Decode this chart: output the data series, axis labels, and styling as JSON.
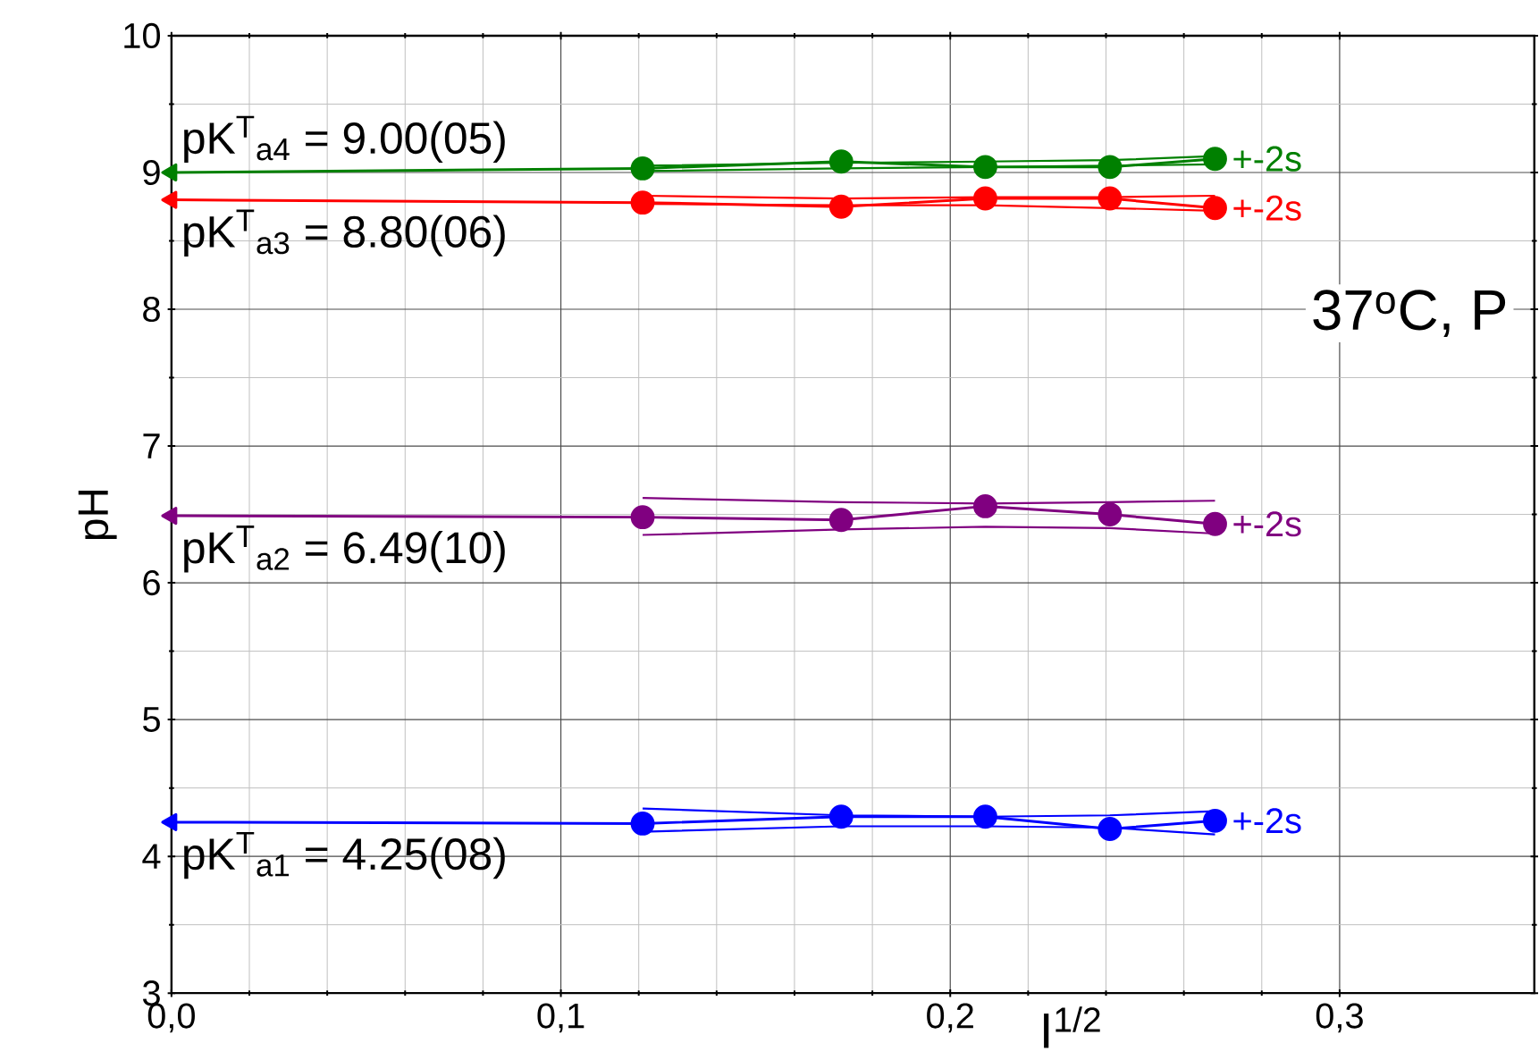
{
  "chart_data": {
    "type": "line",
    "xlabel": "I$^{1/2}$",
    "ylabel": "pH",
    "xlim": [
      0,
      0.35
    ],
    "ylim": [
      3,
      10
    ],
    "xticks": [
      {
        "value": 0,
        "label": "0,0"
      },
      {
        "value": 0.1,
        "label": "0,1"
      },
      {
        "value": 0.2,
        "label": "0,2"
      },
      {
        "value": 0.3,
        "label": "0,3"
      }
    ],
    "yticks": [
      3,
      4,
      5,
      6,
      7,
      8,
      9,
      10
    ],
    "grid": true,
    "marker": "circle",
    "series": [
      {
        "color": "#008000",
        "marker": "none",
        "x": [
          0.121,
          0.172,
          0.209,
          0.241,
          0.268
        ],
        "values": [
          9.05,
          9.07,
          9.08,
          9.09,
          9.12
        ]
      },
      {
        "color": "#008000",
        "marker": "none",
        "x": [
          0.121,
          0.172,
          0.209,
          0.241,
          0.268
        ],
        "values": [
          9.01,
          9.03,
          9.04,
          9.05,
          9.06
        ]
      },
      {
        "color": "#008000",
        "type": "line",
        "marker": "triangle",
        "x": [
          0,
          0.121
        ],
        "values": [
          9.0,
          9.03
        ]
      },
      {
        "color": "#008000",
        "x": [
          0.121,
          0.172,
          0.209,
          0.241,
          0.268
        ],
        "values": [
          9.03,
          9.08,
          9.04,
          9.04,
          9.1
        ]
      },
      {
        "color": "#ff0000",
        "marker": "none",
        "x": [
          0.121,
          0.172,
          0.209,
          0.241,
          0.268
        ],
        "values": [
          8.83,
          8.81,
          8.82,
          8.82,
          8.83
        ]
      },
      {
        "color": "#ff0000",
        "marker": "none",
        "x": [
          0.121,
          0.172,
          0.209,
          0.241,
          0.268
        ],
        "values": [
          8.77,
          8.76,
          8.76,
          8.74,
          8.72
        ]
      },
      {
        "color": "#ff0000",
        "type": "line",
        "marker": "triangle",
        "x": [
          0,
          0.121
        ],
        "values": [
          8.8,
          8.78
        ]
      },
      {
        "color": "#ff0000",
        "x": [
          0.121,
          0.172,
          0.209,
          0.241,
          0.268
        ],
        "values": [
          8.78,
          8.75,
          8.81,
          8.81,
          8.74
        ]
      },
      {
        "color": "#800080",
        "marker": "none",
        "x": [
          0.121,
          0.172,
          0.209,
          0.241,
          0.268
        ],
        "values": [
          6.62,
          6.59,
          6.58,
          6.59,
          6.6
        ]
      },
      {
        "color": "#800080",
        "marker": "none",
        "x": [
          0.121,
          0.172,
          0.209,
          0.241,
          0.268
        ],
        "values": [
          6.35,
          6.39,
          6.41,
          6.4,
          6.36
        ]
      },
      {
        "color": "#800080",
        "type": "line",
        "marker": "triangle",
        "x": [
          0,
          0.121
        ],
        "values": [
          6.49,
          6.48
        ]
      },
      {
        "color": "#800080",
        "x": [
          0.121,
          0.172,
          0.209,
          0.241,
          0.268
        ],
        "values": [
          6.48,
          6.46,
          6.56,
          6.5,
          6.43
        ]
      },
      {
        "color": "#0000ff",
        "marker": "none",
        "x": [
          0.121,
          0.172,
          0.209,
          0.241,
          0.268
        ],
        "values": [
          4.35,
          4.3,
          4.29,
          4.3,
          4.33
        ]
      },
      {
        "color": "#0000ff",
        "marker": "none",
        "x": [
          0.121,
          0.172,
          0.209,
          0.241,
          0.268
        ],
        "values": [
          4.18,
          4.22,
          4.22,
          4.21,
          4.16
        ]
      },
      {
        "color": "#0000ff",
        "type": "line",
        "marker": "triangle",
        "x": [
          0,
          0.121
        ],
        "values": [
          4.25,
          4.24
        ]
      },
      {
        "color": "#0000ff",
        "x": [
          0.121,
          0.172,
          0.209,
          0.241,
          0.268
        ],
        "values": [
          4.24,
          4.29,
          4.29,
          4.2,
          4.26
        ]
      }
    ],
    "annotations": [
      "pK$^{T}$$_{a4}$ = 9.00(05)",
      "pK$^{T}$$_{a3}$ = 8.80(06)",
      "pK$^{T}$$_{a2}$ = 6.49(10)",
      "pK$^{T}$$_{a1}$ = 4.25(08)",
      "+-2s",
      "+-2s",
      "+-2s",
      "+-2s",
      "37$^{o}$C, P"
    ]
  }
}
